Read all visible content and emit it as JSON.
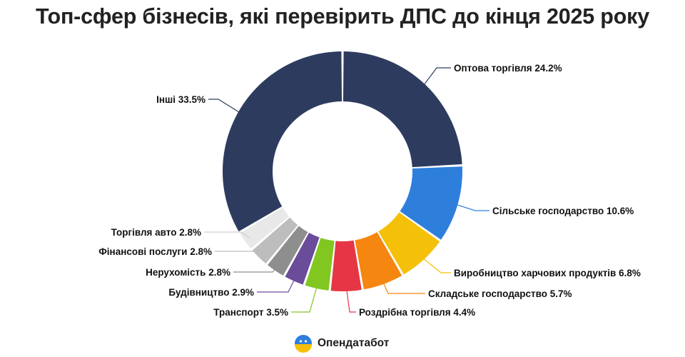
{
  "title": "Топ-сфер бізнесів, які перевірить ДПС до кінця 2025 року",
  "brand": {
    "name": "Опендатабот",
    "logo_icon": "opendatabot-logo-icon"
  },
  "chart_data": {
    "type": "pie",
    "variant": "donut",
    "title": "Топ-сфер бізнесів, які перевірить ДПС до кінця 2025 року",
    "unit": "%",
    "slices": [
      {
        "label": "Оптова торгівля",
        "value": 24.2,
        "color": "#2d3c5e",
        "text": "Оптова торгівля 24.2%"
      },
      {
        "label": "Сільське господарство",
        "value": 10.6,
        "color": "#2e7fdc",
        "text": "Сільське господарство 10.6%"
      },
      {
        "label": "Виробництво харчових продуктів",
        "value": 6.8,
        "color": "#f5c009",
        "text": "Виробництво харчових продуктів 6.8%"
      },
      {
        "label": "Складське господарство",
        "value": 5.7,
        "color": "#f5860f",
        "text": "Складське господарство 5.7%"
      },
      {
        "label": "Роздрібна торгівля",
        "value": 4.4,
        "color": "#e63645",
        "text": "Роздрібна торгівля 4.4%"
      },
      {
        "label": "Транспорт",
        "value": 3.5,
        "color": "#82c720",
        "text": "Транспорт 3.5%"
      },
      {
        "label": "Будівництво",
        "value": 2.9,
        "color": "#6a4c9a",
        "text": "Будівництво 2.9%"
      },
      {
        "label": "Нерухомість",
        "value": 2.8,
        "color": "#8e8e8e",
        "text": "Нерухомість 2.8%"
      },
      {
        "label": "Фінансові послуги",
        "value": 2.8,
        "color": "#bdbdbd",
        "text": "Фінансові послуги 2.8%"
      },
      {
        "label": "Торгівля авто",
        "value": 2.8,
        "color": "#e8e8e8",
        "text": "Торгівля авто 2.8%"
      },
      {
        "label": "Інші",
        "value": 33.5,
        "color": "#2d3c5e",
        "text": "Інші 33.5%"
      }
    ]
  }
}
